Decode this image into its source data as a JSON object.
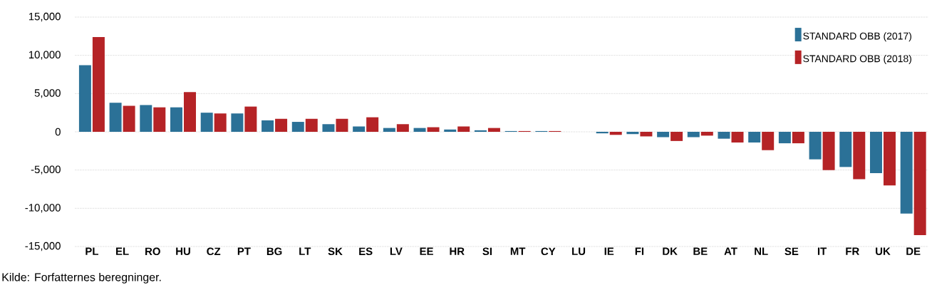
{
  "chart_data": {
    "type": "bar",
    "categories": [
      "PL",
      "EL",
      "RO",
      "HU",
      "CZ",
      "PT",
      "BG",
      "LT",
      "SK",
      "ES",
      "LV",
      "EE",
      "HR",
      "SI",
      "MT",
      "CY",
      "LU",
      "IE",
      "FI",
      "DK",
      "BE",
      "AT",
      "NL",
      "SE",
      "IT",
      "FR",
      "UK",
      "DE"
    ],
    "series": [
      {
        "name": "STANDARD OBB (2017)",
        "color": "#2b7197",
        "values": [
          8700,
          3800,
          3500,
          3200,
          2500,
          2400,
          1500,
          1300,
          1000,
          700,
          500,
          500,
          300,
          200,
          100,
          100,
          null,
          -200,
          -300,
          -700,
          -700,
          -900,
          -1400,
          -1500,
          -3600,
          -4600,
          -5400,
          -10700
        ]
      },
      {
        "name": "STANDARD OBB (2018)",
        "color": "#b52326",
        "values": [
          12400,
          3400,
          3200,
          5200,
          2400,
          3300,
          1700,
          1700,
          1700,
          1900,
          1000,
          600,
          700,
          500,
          100,
          100,
          null,
          -400,
          -600,
          -1200,
          -500,
          -1400,
          -2400,
          -1500,
          -5000,
          -6200,
          -7000,
          -13500
        ]
      }
    ],
    "ylim": [
      -15000,
      15000
    ],
    "yticks": [
      {
        "value": -15000,
        "label": "-15,000"
      },
      {
        "value": -10000,
        "label": "-10,000"
      },
      {
        "value": -5000,
        "label": "-5,000"
      },
      0,
      {
        "value": 5000,
        "label": "5,000"
      },
      {
        "value": 10000,
        "label": "10,000"
      },
      {
        "value": 15000,
        "label": "15,000"
      }
    ],
    "grid": "y",
    "legend": "top right",
    "annotations": [
      "Kilde: Forfatternes beregninger."
    ]
  }
}
